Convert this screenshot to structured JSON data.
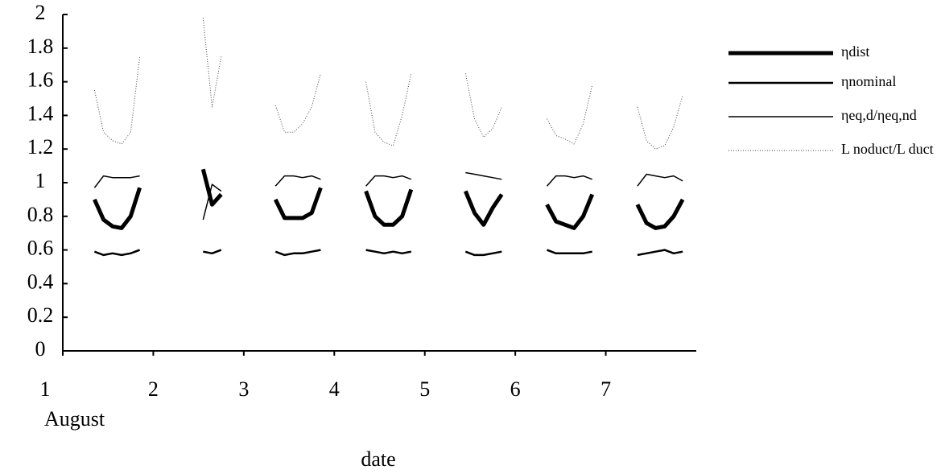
{
  "chart_data": {
    "type": "line",
    "x_label": "date",
    "x_note": "August",
    "x": [
      1.35,
      1.45,
      1.55,
      1.65,
      1.75,
      1.85,
      1.95,
      2.35,
      2.45,
      2.55,
      2.65,
      2.75,
      2.85,
      2.95,
      3.35,
      3.45,
      3.55,
      3.65,
      3.75,
      3.85,
      3.95,
      4.35,
      4.45,
      4.55,
      4.65,
      4.75,
      4.85,
      4.95,
      5.35,
      5.45,
      5.55,
      5.65,
      5.75,
      5.85,
      5.95,
      6.35,
      6.45,
      6.55,
      6.65,
      6.75,
      6.85,
      6.95,
      7.35,
      7.45,
      7.55,
      7.65,
      7.75,
      7.85,
      7.95
    ],
    "xlim": [
      1,
      8
    ],
    "xticks": [
      1,
      2,
      3,
      4,
      5,
      6,
      7
    ],
    "ylim": [
      0,
      2
    ],
    "yticks": [
      0,
      0.2,
      0.4,
      0.6,
      0.8,
      1,
      1.2,
      1.4,
      1.6,
      1.8,
      2
    ],
    "series": [
      {
        "name": "ηdist",
        "color": "#000000",
        "width": 5,
        "dashed": false,
        "values": [
          0.9,
          0.78,
          0.74,
          0.73,
          0.8,
          0.97,
          null,
          null,
          null,
          1.08,
          0.87,
          0.93,
          null,
          null,
          0.9,
          0.79,
          0.79,
          0.79,
          0.82,
          0.97,
          null,
          0.95,
          0.8,
          0.75,
          0.75,
          0.8,
          0.96,
          null,
          null,
          0.95,
          0.82,
          0.75,
          0.85,
          0.93,
          null,
          0.87,
          0.77,
          0.75,
          0.73,
          0.8,
          0.93,
          null,
          0.87,
          0.76,
          0.73,
          0.74,
          0.8,
          0.9,
          null
        ]
      },
      {
        "name": "ηnominal",
        "color": "#000000",
        "width": 2.5,
        "dashed": false,
        "values": [
          0.59,
          0.57,
          0.58,
          0.57,
          0.58,
          0.6,
          null,
          null,
          null,
          0.59,
          0.58,
          0.6,
          null,
          null,
          0.59,
          0.57,
          0.58,
          0.58,
          0.59,
          0.6,
          null,
          0.6,
          0.59,
          0.58,
          0.59,
          0.58,
          0.59,
          null,
          null,
          0.59,
          0.57,
          0.57,
          0.58,
          0.59,
          null,
          0.6,
          0.58,
          0.58,
          0.58,
          0.58,
          0.59,
          null,
          0.57,
          0.58,
          0.59,
          0.6,
          0.58,
          0.59,
          null
        ]
      },
      {
        "name": "ηeq,d/ηeq,nd",
        "color": "#000000",
        "width": 1.5,
        "dashed": false,
        "values": [
          0.97,
          1.04,
          1.03,
          1.03,
          1.03,
          1.04,
          null,
          null,
          null,
          0.78,
          0.99,
          0.95,
          null,
          null,
          0.98,
          1.04,
          1.04,
          1.03,
          1.04,
          1.02,
          null,
          0.98,
          1.04,
          1.04,
          1.03,
          1.04,
          1.02,
          null,
          null,
          1.06,
          1.05,
          1.04,
          1.03,
          1.02,
          null,
          0.98,
          1.04,
          1.04,
          1.03,
          1.04,
          1.02,
          null,
          0.98,
          1.05,
          1.04,
          1.03,
          1.04,
          1.01,
          null
        ]
      },
      {
        "name": "L noduct/L duct",
        "color": "#444444",
        "width": 1,
        "dashed": true,
        "values": [
          1.55,
          1.3,
          1.25,
          1.23,
          1.3,
          1.75,
          null,
          null,
          null,
          1.98,
          1.45,
          1.75,
          null,
          null,
          1.46,
          1.3,
          1.3,
          1.35,
          1.45,
          1.65,
          null,
          1.6,
          1.3,
          1.24,
          1.22,
          1.4,
          1.65,
          null,
          null,
          1.65,
          1.38,
          1.27,
          1.32,
          1.45,
          null,
          1.38,
          1.28,
          1.26,
          1.23,
          1.35,
          1.58,
          null,
          1.45,
          1.25,
          1.2,
          1.22,
          1.33,
          1.52,
          null
        ]
      }
    ]
  }
}
